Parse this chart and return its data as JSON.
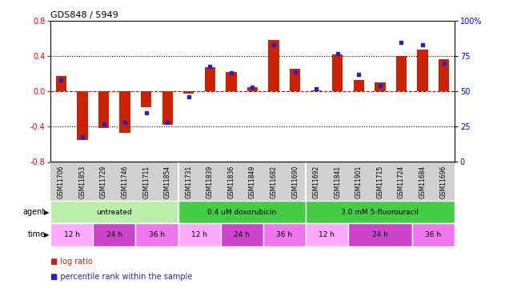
{
  "title": "GDS848 / 5949",
  "samples": [
    "GSM11706",
    "GSM11853",
    "GSM11729",
    "GSM11746",
    "GSM11711",
    "GSM11854",
    "GSM11731",
    "GSM11839",
    "GSM11836",
    "GSM11849",
    "GSM11682",
    "GSM11690",
    "GSM11692",
    "GSM11841",
    "GSM11901",
    "GSM11715",
    "GSM11724",
    "GSM11684",
    "GSM11696"
  ],
  "log_ratio": [
    0.18,
    -0.55,
    -0.41,
    -0.47,
    -0.18,
    -0.38,
    -0.02,
    0.28,
    0.22,
    0.05,
    0.58,
    0.26,
    0.01,
    0.42,
    0.13,
    0.1,
    0.4,
    0.48,
    0.37
  ],
  "percentile": [
    58,
    18,
    27,
    28,
    35,
    28,
    46,
    68,
    63,
    53,
    83,
    64,
    52,
    77,
    62,
    54,
    85,
    83,
    70
  ],
  "agent_groups": [
    {
      "label": "untreated",
      "start": 0,
      "end": 6,
      "color": "#bbeeaa"
    },
    {
      "label": "0.4 uM doxorubicin",
      "start": 6,
      "end": 12,
      "color": "#44cc44"
    },
    {
      "label": "3.0 mM 5-fluorouracil",
      "start": 12,
      "end": 19,
      "color": "#44cc44"
    }
  ],
  "time_groups": [
    {
      "label": "12 h",
      "start": 0,
      "end": 2,
      "color": "#ffaaff"
    },
    {
      "label": "24 h",
      "start": 2,
      "end": 4,
      "color": "#cc44cc"
    },
    {
      "label": "36 h",
      "start": 4,
      "end": 6,
      "color": "#ee66ee"
    },
    {
      "label": "12 h",
      "start": 6,
      "end": 8,
      "color": "#ffaaff"
    },
    {
      "label": "24 h",
      "start": 8,
      "end": 10,
      "color": "#cc44cc"
    },
    {
      "label": "36 h",
      "start": 10,
      "end": 12,
      "color": "#ee66ee"
    },
    {
      "label": "12 h",
      "start": 12,
      "end": 14,
      "color": "#ffaaff"
    },
    {
      "label": "24 h",
      "start": 14,
      "end": 17,
      "color": "#cc44cc"
    },
    {
      "label": "36 h",
      "start": 17,
      "end": 19,
      "color": "#ee66ee"
    }
  ],
  "bar_color": "#cc2200",
  "dot_color": "#2222cc",
  "ylim_left": [
    -0.8,
    0.8
  ],
  "ylim_right": [
    0,
    100
  ],
  "yticks_left": [
    -0.8,
    -0.4,
    0.0,
    0.4,
    0.8
  ],
  "yticks_right": [
    0,
    25,
    50,
    75,
    100
  ],
  "hline_dotted": [
    -0.4,
    0.4
  ],
  "hline_dashed": [
    0.0
  ]
}
